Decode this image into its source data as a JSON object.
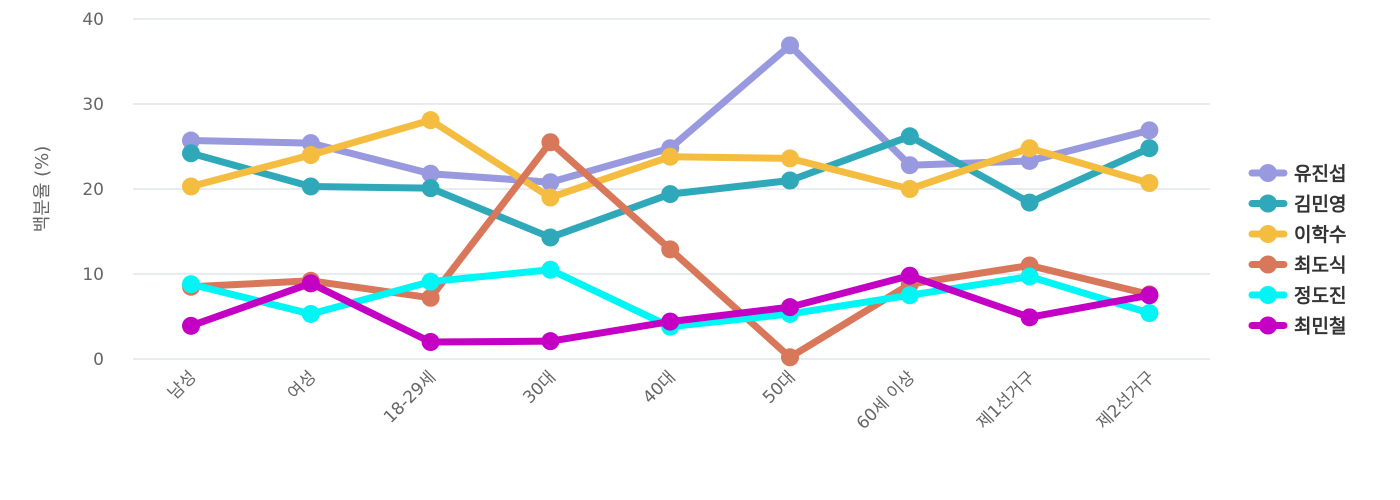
{
  "chart_data": {
    "type": "line",
    "title": "",
    "xlabel": "",
    "ylabel": "백분율 (%)",
    "ylim": [
      0,
      40
    ],
    "yticks": [
      0,
      10,
      20,
      30,
      40
    ],
    "grid": true,
    "legend_position": "right",
    "categories": [
      "남성",
      "여성",
      "18-29세",
      "30대",
      "40대",
      "50대",
      "60세 이상",
      "제1선거구",
      "제2선거구"
    ],
    "series": [
      {
        "name": "유진섭",
        "color": "#9999e0",
        "values": [
          25.7,
          25.4,
          21.8,
          20.8,
          24.8,
          36.9,
          22.8,
          23.3,
          26.9
        ]
      },
      {
        "name": "김민영",
        "color": "#2fa9b9",
        "values": [
          24.2,
          20.3,
          20.1,
          14.3,
          19.4,
          21.0,
          26.2,
          18.4,
          24.8
        ]
      },
      {
        "name": "이학수",
        "color": "#f5bd3f",
        "values": [
          20.3,
          24.0,
          28.1,
          19.0,
          23.8,
          23.6,
          20.0,
          24.8,
          20.7
        ]
      },
      {
        "name": "최도식",
        "color": "#d9775a",
        "values": [
          8.5,
          9.2,
          7.2,
          25.5,
          12.9,
          0.2,
          8.8,
          11.0,
          7.6
        ]
      },
      {
        "name": "정도진",
        "color": "#00f5f5",
        "values": [
          8.8,
          5.3,
          9.1,
          10.5,
          3.8,
          5.3,
          7.5,
          9.7,
          5.4
        ]
      },
      {
        "name": "최민철",
        "color": "#c300c3",
        "values": [
          3.9,
          8.9,
          2.0,
          2.1,
          4.4,
          6.1,
          9.8,
          4.9,
          7.5
        ]
      }
    ]
  }
}
